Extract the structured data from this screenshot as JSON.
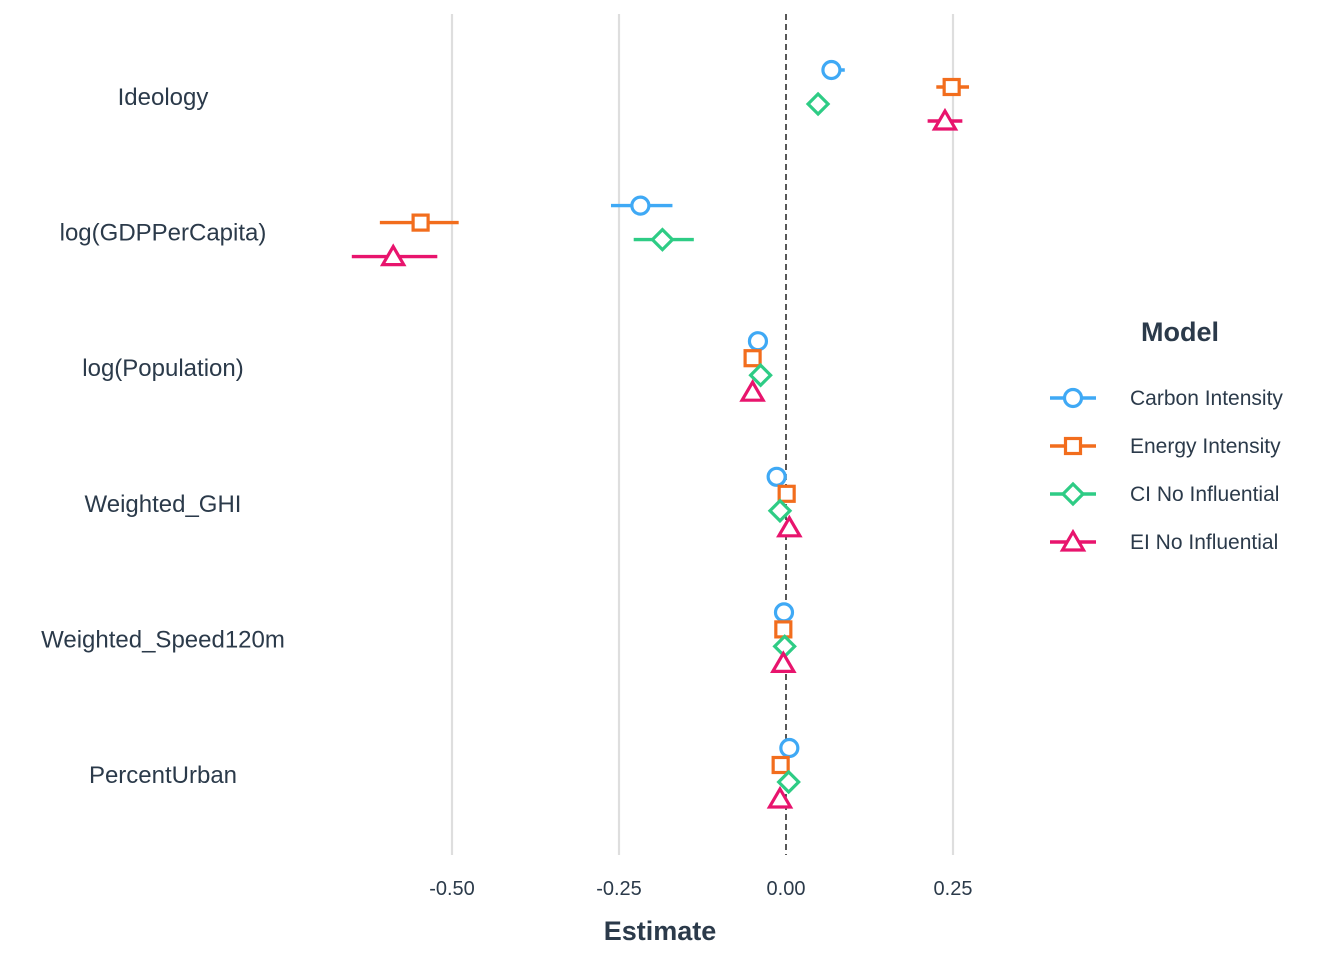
{
  "chart_data": {
    "type": "scatter",
    "subtype": "coefficient-plot",
    "xlabel": "Estimate",
    "xlim": [
      -0.65,
      0.3
    ],
    "x_ticks": [
      -0.5,
      -0.25,
      0.0,
      0.25
    ],
    "x_tick_labels": [
      "-0.50",
      "-0.25",
      "0.00",
      "0.25"
    ],
    "reference_line": 0,
    "grid": "vertical major lines",
    "legend_title": "Model",
    "legend_position": "right",
    "categories": [
      "Ideology",
      "log(GDPPerCapita)",
      "log(Population)",
      "Weighted_GHI",
      "Weighted_Speed120m",
      "PercentUrban"
    ],
    "series": [
      {
        "name": "Carbon Intensity",
        "color": "#3fa9f5",
        "marker": "circle",
        "points": [
          {
            "category": "Ideology",
            "estimate": 0.068,
            "low": 0.055,
            "high": 0.088
          },
          {
            "category": "log(GDPPerCapita)",
            "estimate": -0.218,
            "low": -0.262,
            "high": -0.17
          },
          {
            "category": "log(Population)",
            "estimate": -0.042,
            "low": -0.048,
            "high": -0.036
          },
          {
            "category": "Weighted_GHI",
            "estimate": -0.014,
            "low": -0.018,
            "high": -0.01
          },
          {
            "category": "Weighted_Speed120m",
            "estimate": -0.003,
            "low": -0.006,
            "high": 0.0
          },
          {
            "category": "PercentUrban",
            "estimate": 0.005,
            "low": 0.002,
            "high": 0.008
          }
        ]
      },
      {
        "name": "Energy Intensity",
        "color": "#f26d1d",
        "marker": "square",
        "points": [
          {
            "category": "Ideology",
            "estimate": 0.248,
            "low": 0.225,
            "high": 0.274
          },
          {
            "category": "log(GDPPerCapita)",
            "estimate": -0.547,
            "low": -0.608,
            "high": -0.49
          },
          {
            "category": "log(Population)",
            "estimate": -0.05,
            "low": -0.063,
            "high": -0.04
          },
          {
            "category": "Weighted_GHI",
            "estimate": 0.001,
            "low": -0.004,
            "high": 0.006
          },
          {
            "category": "Weighted_Speed120m",
            "estimate": -0.004,
            "low": -0.008,
            "high": 0.0
          },
          {
            "category": "PercentUrban",
            "estimate": -0.008,
            "low": -0.012,
            "high": -0.004
          }
        ]
      },
      {
        "name": "CI No Influential",
        "color": "#2ecc85",
        "marker": "diamond",
        "points": [
          {
            "category": "Ideology",
            "estimate": 0.048,
            "low": 0.037,
            "high": 0.062
          },
          {
            "category": "log(GDPPerCapita)",
            "estimate": -0.185,
            "low": -0.228,
            "high": -0.138
          },
          {
            "category": "log(Population)",
            "estimate": -0.038,
            "low": -0.045,
            "high": -0.03
          },
          {
            "category": "Weighted_GHI",
            "estimate": -0.009,
            "low": -0.013,
            "high": -0.005
          },
          {
            "category": "Weighted_Speed120m",
            "estimate": -0.002,
            "low": -0.005,
            "high": 0.001
          },
          {
            "category": "PercentUrban",
            "estimate": 0.004,
            "low": 0.0,
            "high": 0.008
          }
        ]
      },
      {
        "name": "EI No Influential",
        "color": "#e8146d",
        "marker": "triangle",
        "points": [
          {
            "category": "Ideology",
            "estimate": 0.238,
            "low": 0.212,
            "high": 0.264
          },
          {
            "category": "log(GDPPerCapita)",
            "estimate": -0.588,
            "low": -0.65,
            "high": -0.522
          },
          {
            "category": "log(Population)",
            "estimate": -0.05,
            "low": -0.057,
            "high": -0.043
          },
          {
            "category": "Weighted_GHI",
            "estimate": 0.005,
            "low": 0.0,
            "high": 0.01
          },
          {
            "category": "Weighted_Speed120m",
            "estimate": -0.004,
            "low": -0.007,
            "high": -0.001
          },
          {
            "category": "PercentUrban",
            "estimate": -0.009,
            "low": -0.013,
            "high": -0.005
          }
        ]
      }
    ]
  }
}
